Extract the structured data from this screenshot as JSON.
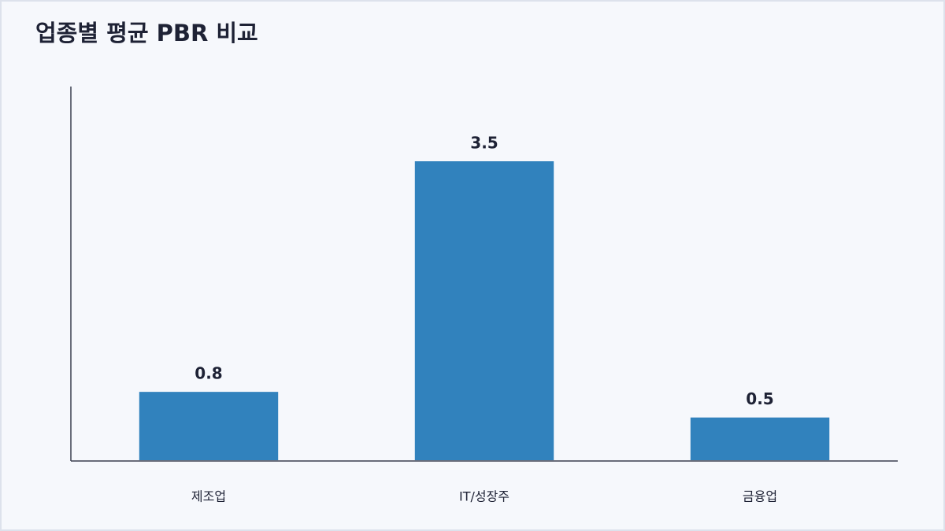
{
  "chart_data": {
    "type": "bar",
    "title": "업종별 평균 PBR 비교",
    "categories": [
      "제조업",
      "IT/성장주",
      "금융업"
    ],
    "values": [
      0.8,
      3.5,
      0.5
    ],
    "color": "#3182bd",
    "ylim": [
      0,
      4.375
    ],
    "value_labels_shown": true
  }
}
